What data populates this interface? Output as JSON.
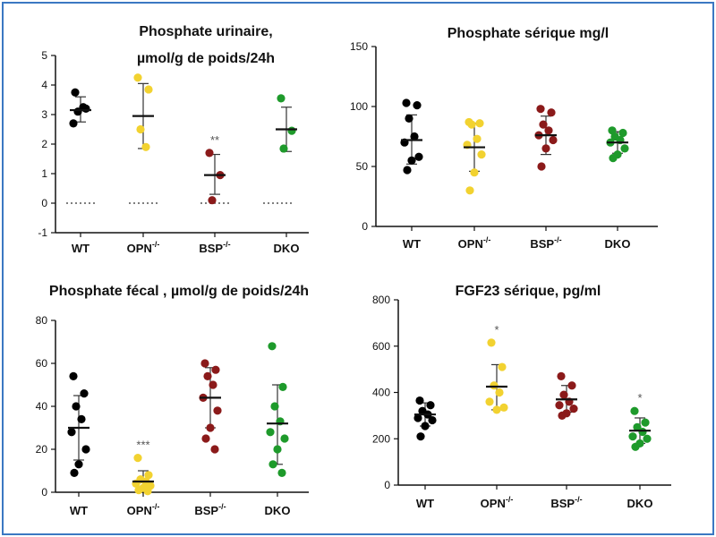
{
  "colors": {
    "WT": "#000000",
    "OPN": "#f2d230",
    "BSP": "#8b1a1a",
    "DKO": "#1e9a2b",
    "frame": "#3b78c2"
  },
  "chart_data": [
    {
      "type": "scatter",
      "title_lines": [
        "Phosphate  urinaire,",
        "µmol/g de poids/24h"
      ],
      "ylim": [
        -1,
        5
      ],
      "yticks": [
        -1,
        0,
        1,
        2,
        3,
        4,
        5
      ],
      "categories": [
        {
          "key": "WT",
          "label": "WT",
          "sup": ""
        },
        {
          "key": "OPN",
          "label": "OPN",
          "sup": "-/-"
        },
        {
          "key": "BSP",
          "label": "BSP",
          "sup": "-/-"
        },
        {
          "key": "DKO",
          "label": "DKO",
          "sup": ""
        }
      ],
      "points": {
        "WT": [
          3.75,
          3.2,
          3.1,
          3.25,
          2.7
        ],
        "OPN": [
          4.25,
          3.85,
          2.5,
          1.9
        ],
        "BSP": [
          1.7,
          0.95,
          0.1
        ],
        "DKO": [
          3.55,
          2.45,
          1.85
        ]
      },
      "mean": {
        "WT": 3.15,
        "OPN": 2.95,
        "BSP": 0.95,
        "DKO": 2.5
      },
      "sd": {
        "WT": [
          2.75,
          3.6
        ],
        "OPN": [
          1.85,
          4.05
        ],
        "BSP": [
          0.3,
          1.65
        ],
        "DKO": [
          1.75,
          3.25
        ]
      },
      "zero_line": true,
      "significance": {
        "BSP": "**"
      }
    },
    {
      "type": "scatter",
      "title_lines": [
        "Phosphate  sérique mg/l"
      ],
      "ylim": [
        0,
        150
      ],
      "yticks": [
        0,
        50,
        100,
        150
      ],
      "categories": [
        {
          "key": "WT",
          "label": "WT",
          "sup": ""
        },
        {
          "key": "OPN",
          "label": "OPN",
          "sup": "-/-"
        },
        {
          "key": "BSP",
          "label": "BSP",
          "sup": "-/-"
        },
        {
          "key": "DKO",
          "label": "DKO",
          "sup": ""
        }
      ],
      "points": {
        "WT": [
          103,
          101,
          90,
          75,
          70,
          58,
          55,
          47
        ],
        "OPN": [
          87,
          86,
          85,
          73,
          68,
          60,
          45,
          30
        ],
        "BSP": [
          98,
          95,
          85,
          80,
          76,
          72,
          65,
          50
        ],
        "DKO": [
          80,
          78,
          75,
          72,
          70,
          65,
          60,
          57
        ]
      },
      "mean": {
        "WT": 72,
        "OPN": 66,
        "BSP": 76,
        "DKO": 70
      },
      "sd": {
        "WT": [
          52,
          93
        ],
        "OPN": [
          46,
          86
        ],
        "BSP": [
          60,
          92
        ],
        "DKO": [
          61,
          79
        ]
      },
      "zero_line": false,
      "significance": {}
    },
    {
      "type": "scatter",
      "title_lines": [
        "Phosphate  fécal , µmol/g de poids/24h"
      ],
      "ylim": [
        0,
        80
      ],
      "yticks": [
        0,
        20,
        40,
        60,
        80
      ],
      "categories": [
        {
          "key": "WT",
          "label": "WT",
          "sup": ""
        },
        {
          "key": "OPN",
          "label": "OPN",
          "sup": "-/-"
        },
        {
          "key": "BSP",
          "label": "BSP",
          "sup": "-/-"
        },
        {
          "key": "DKO",
          "label": "DKO",
          "sup": ""
        }
      ],
      "points": {
        "WT": [
          54,
          46,
          40,
          34,
          28,
          20,
          13,
          9
        ],
        "OPN": [
          16,
          8,
          6,
          5,
          4,
          3,
          2,
          1,
          0.5
        ],
        "BSP": [
          60,
          57,
          54,
          50,
          44,
          38,
          30,
          25,
          20
        ],
        "DKO": [
          68,
          49,
          40,
          33,
          28,
          25,
          20,
          13,
          9
        ]
      },
      "mean": {
        "WT": 30,
        "OPN": 5,
        "BSP": 44,
        "DKO": 32
      },
      "sd": {
        "WT": [
          15,
          45
        ],
        "OPN": [
          1,
          10
        ],
        "BSP": [
          30,
          58
        ],
        "DKO": [
          13,
          50
        ]
      },
      "zero_line": false,
      "significance": {
        "OPN": "***"
      }
    },
    {
      "type": "scatter",
      "title_lines": [
        "FGF23 sérique, pg/ml"
      ],
      "ylim": [
        0,
        800
      ],
      "yticks": [
        0,
        200,
        400,
        600,
        800
      ],
      "categories": [
        {
          "key": "WT",
          "label": "WT",
          "sup": ""
        },
        {
          "key": "OPN",
          "label": "OPN",
          "sup": "-/-"
        },
        {
          "key": "BSP",
          "label": "BSP",
          "sup": "-/-"
        },
        {
          "key": "DKO",
          "label": "DKO",
          "sup": ""
        }
      ],
      "points": {
        "WT": [
          365,
          345,
          320,
          305,
          290,
          280,
          255,
          210
        ],
        "OPN": [
          615,
          510,
          430,
          400,
          360,
          335,
          325
        ],
        "BSP": [
          470,
          430,
          390,
          360,
          345,
          330,
          310,
          300
        ],
        "DKO": [
          320,
          270,
          250,
          230,
          210,
          200,
          180,
          165
        ]
      },
      "mean": {
        "WT": 305,
        "OPN": 425,
        "BSP": 370,
        "DKO": 235
      },
      "sd": {
        "WT": [
          255,
          355
        ],
        "OPN": [
          325,
          520
        ],
        "BSP": [
          315,
          430
        ],
        "DKO": [
          180,
          290
        ]
      },
      "zero_line": false,
      "significance": {
        "OPN": "*",
        "DKO": "*"
      }
    }
  ]
}
